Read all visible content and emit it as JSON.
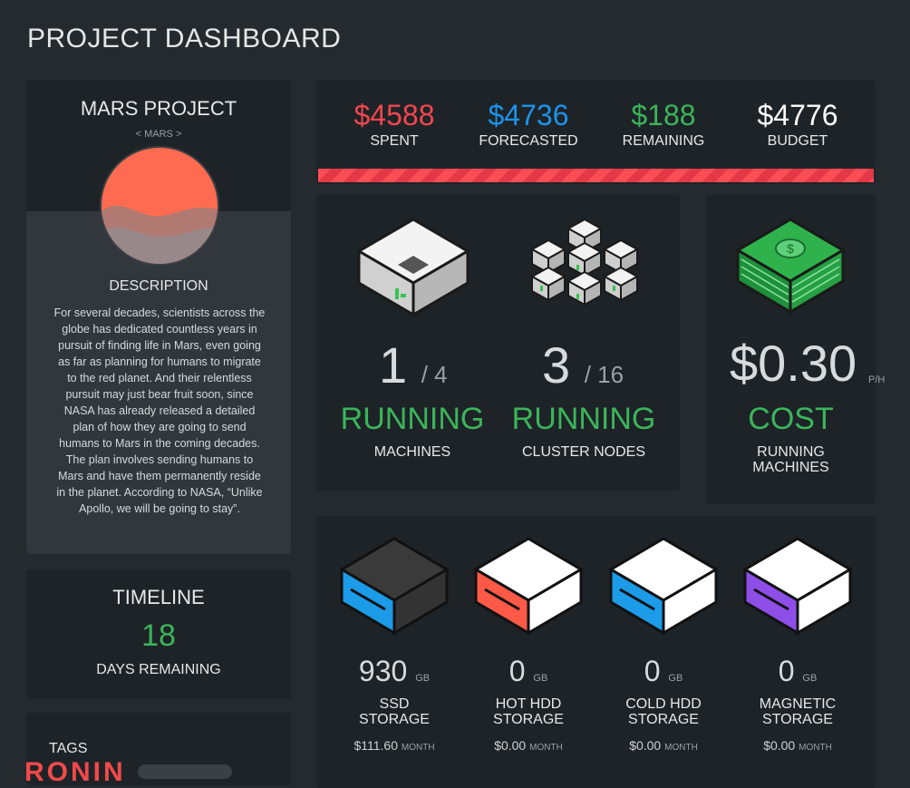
{
  "page": {
    "title": "PROJECT DASHBOARD"
  },
  "project": {
    "name": "MARS PROJECT",
    "code": "< MARS >",
    "description_title": "DESCRIPTION",
    "description": "For several decades, scientists across the globe has dedicated countless years in pursuit of finding life in Mars, even going as far as planning for humans to migrate to the red planet. And their relentless pursuit may just bear fruit soon, since NASA has already released a detailed plan of how they are going to send humans to Mars in the coming decades. The plan involves sending humans to Mars and have them permanently reside in the planet. According to NASA, “Unlike Apollo, we will be going to stay”."
  },
  "timeline": {
    "title": "TIMELINE",
    "days": "18",
    "label": "DAYS REMAINING"
  },
  "tags": {
    "title": "TAGS",
    "first_tag": "RONIN"
  },
  "budget": {
    "spent": {
      "value": "$4588",
      "label": "SPENT",
      "color": "#f0474e"
    },
    "forecasted": {
      "value": "$4736",
      "label": "FORECASTED",
      "color": "#1c93ea"
    },
    "remaining": {
      "value": "$188",
      "label": "REMAINING",
      "color": "#3bb55a"
    },
    "total": {
      "value": "$4776",
      "label": "BUDGET",
      "color": "#ffffff"
    }
  },
  "machines": {
    "running": "1",
    "total": "/ 4",
    "status": "RUNNING",
    "label": "MACHINES",
    "icon": "server-box-icon"
  },
  "cluster": {
    "running": "3",
    "total": "/ 16",
    "status": "RUNNING",
    "label": "CLUSTER NODES",
    "icon": "cluster-icon"
  },
  "cost": {
    "value": "$0.30",
    "unit": "P/H",
    "status": "COST",
    "label": "RUNNING MACHINES",
    "icon": "money-stack-icon"
  },
  "storage": [
    {
      "amount": "930",
      "unit": "GB",
      "label1": "SSD",
      "label2": "STORAGE",
      "price": "$111.60",
      "period": "MONTH",
      "color": "#1c9be8",
      "icon": "ssd-icon"
    },
    {
      "amount": "0",
      "unit": "GB",
      "label1": "HOT HDD",
      "label2": "STORAGE",
      "price": "$0.00",
      "period": "MONTH",
      "color": "#ff5a47",
      "icon": "hot-hdd-icon"
    },
    {
      "amount": "0",
      "unit": "GB",
      "label1": "COLD HDD",
      "label2": "STORAGE",
      "price": "$0.00",
      "period": "MONTH",
      "color": "#1c9be8",
      "icon": "cold-hdd-icon"
    },
    {
      "amount": "0",
      "unit": "GB",
      "label1": "MAGNETIC",
      "label2": "STORAGE",
      "price": "$0.00",
      "period": "MONTH",
      "color": "#8e4ee8",
      "icon": "magnetic-icon"
    }
  ]
}
